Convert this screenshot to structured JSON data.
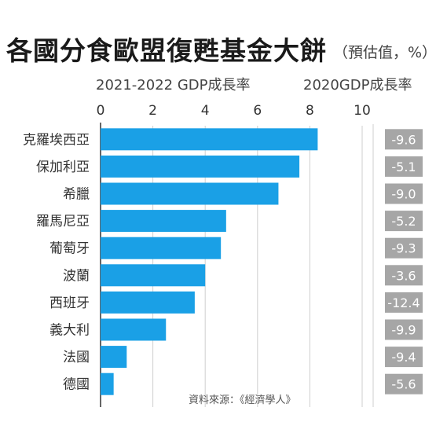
{
  "header": {
    "title": "各國分食歐盟復甦基金大餅",
    "subtitle": "（預估值，%）",
    "left_label": "2021-2022 GDP成長率",
    "right_label": "2020GDP成長率",
    "source": "資料來源：《經濟學人》"
  },
  "colors": {
    "bar": "#1aa0e6",
    "box": "#a6a6a6",
    "box_text": "#ffffff",
    "grid": "#cfcfcf",
    "axis": "#333333"
  },
  "chart_data": {
    "type": "bar",
    "orientation": "horizontal",
    "title": "各國分食歐盟復甦基金大餅",
    "categories": [
      "克羅埃西亞",
      "保加利亞",
      "希臘",
      "羅馬尼亞",
      "葡萄牙",
      "波蘭",
      "西班牙",
      "義大利",
      "法國",
      "德國"
    ],
    "series": [
      {
        "name": "2021-2022 GDP成長率",
        "values": [
          8.3,
          7.6,
          6.8,
          4.8,
          4.6,
          4.0,
          3.6,
          2.5,
          1.0,
          0.5
        ]
      },
      {
        "name": "2020GDP成長率",
        "values": [
          -9.6,
          -5.1,
          -9.0,
          -5.2,
          -9.3,
          -3.6,
          -12.4,
          -9.9,
          -9.4,
          -5.6
        ]
      }
    ],
    "value_labels_2020": [
      "-9.6",
      "-5.1",
      "-9.0",
      "-5.2",
      "-9.3",
      "-3.6",
      "-12.4",
      "-9.9",
      "-9.4",
      "-5.6"
    ],
    "xlim": [
      0,
      10
    ],
    "xticks": [
      "0",
      "2",
      "4",
      "6",
      "8",
      "10"
    ],
    "grid": true
  }
}
